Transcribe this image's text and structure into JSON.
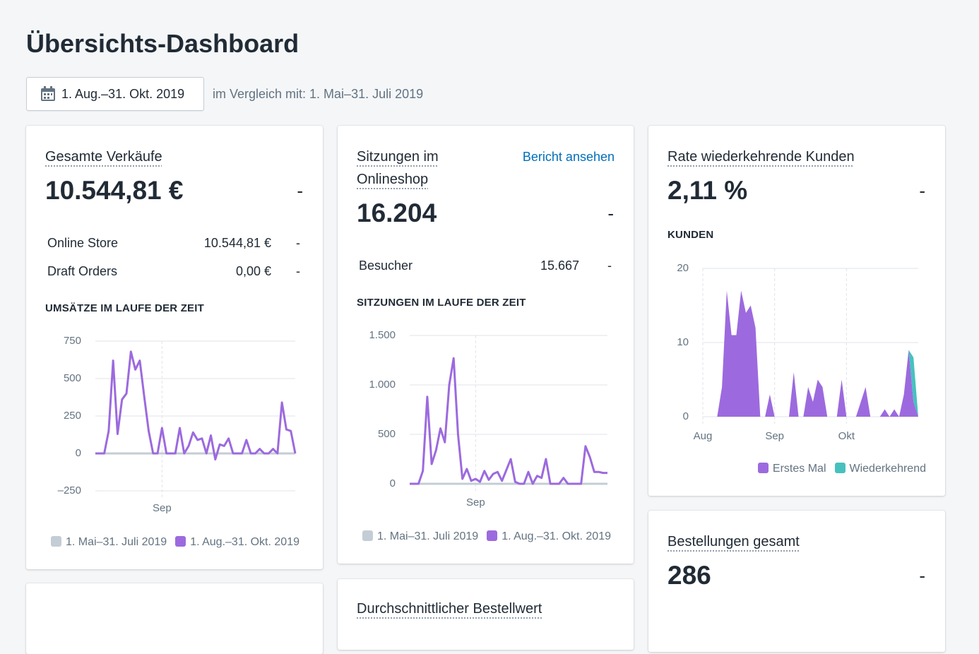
{
  "header": {
    "title": "Übersichts-Dashboard",
    "date_range": "1. Aug.–31. Okt. 2019",
    "comparison": "im Vergleich mit: 1. Mai–31. Juli 2019"
  },
  "cards": [
    {
      "title": "Gesamte Verkäufe",
      "value": "10.544,81 €",
      "change": "-",
      "rows": [
        {
          "label": "Online Store",
          "value": "10.544,81 €",
          "change": "-"
        },
        {
          "label": "Draft Orders",
          "value": "0,00 €",
          "change": "-"
        }
      ],
      "chart": {
        "type": "line",
        "title": "UMSÄTZE IM LAUFE DER ZEIT",
        "categories": [
          null,
          null,
          null,
          null,
          null,
          null,
          null,
          null,
          null,
          null,
          null,
          null,
          null,
          null,
          null,
          "Sep",
          null,
          null,
          null,
          null,
          null,
          null,
          null,
          null,
          null,
          null,
          null,
          null,
          null,
          null,
          null,
          null,
          null,
          null,
          null,
          null,
          null,
          null,
          null,
          null,
          null,
          null,
          null,
          null,
          null,
          null
        ],
        "ylim": [
          -250,
          750
        ],
        "yticks": [
          {
            "value": -250,
            "label": "–250"
          },
          0,
          250,
          500,
          750
        ],
        "grid": true,
        "series": [
          {
            "name": "1. Mai–31. Juli 2019",
            "color": "#c4cdd5",
            "values": [
              0,
              0,
              0,
              0,
              0,
              0,
              0,
              0,
              0,
              0,
              0,
              0,
              0,
              0,
              0,
              0,
              0,
              0,
              0,
              0,
              0,
              0,
              0,
              0,
              0,
              0,
              0,
              0,
              0,
              0,
              0,
              0,
              0,
              0,
              0,
              0,
              0,
              0,
              0,
              0,
              0,
              0,
              0,
              0,
              0,
              0
            ]
          },
          {
            "name": "1. Aug.–31. Okt. 2019",
            "color": "#9c6ade",
            "values": [
              0,
              0,
              0,
              150,
              620,
              130,
              360,
              400,
              680,
              560,
              620,
              380,
              150,
              0,
              0,
              170,
              0,
              0,
              0,
              170,
              0,
              50,
              140,
              90,
              100,
              0,
              120,
              -40,
              60,
              50,
              100,
              0,
              0,
              0,
              90,
              0,
              0,
              30,
              0,
              0,
              30,
              0,
              340,
              160,
              150,
              0
            ]
          }
        ]
      }
    },
    {
      "title": "Sitzungen im Onlineshop",
      "link": "Bericht ansehen",
      "value": "16.204",
      "change": "-",
      "rows": [
        {
          "label": "Besucher",
          "value": "15.667",
          "change": "-"
        }
      ],
      "chart": {
        "type": "line",
        "title": "SITZUNGEN IM LAUFE DER ZEIT",
        "categories": [
          null,
          null,
          null,
          null,
          null,
          null,
          null,
          null,
          null,
          null,
          null,
          null,
          null,
          null,
          null,
          "Sep",
          null,
          null,
          null,
          null,
          null,
          null,
          null,
          null,
          null,
          null,
          null,
          null,
          null,
          null,
          null,
          null,
          null,
          null,
          null,
          null,
          null,
          null,
          null,
          null,
          null,
          null,
          null,
          null,
          null,
          null
        ],
        "ylim": [
          0,
          1500
        ],
        "yticks": [
          0,
          500,
          {
            "value": 1000,
            "label": "1.000"
          },
          {
            "value": 1500,
            "label": "1.500"
          }
        ],
        "grid": true,
        "series": [
          {
            "name": "1. Mai–31. Juli 2019",
            "color": "#c4cdd5",
            "values": [
              0,
              0,
              0,
              0,
              0,
              0,
              0,
              0,
              0,
              0,
              0,
              0,
              0,
              0,
              0,
              0,
              0,
              0,
              0,
              0,
              0,
              0,
              0,
              0,
              0,
              0,
              0,
              0,
              0,
              0,
              0,
              0,
              0,
              0,
              0,
              0,
              0,
              0,
              0,
              0,
              0,
              0,
              0,
              0,
              0,
              0
            ]
          },
          {
            "name": "1. Aug.–31. Okt. 2019",
            "color": "#9c6ade",
            "values": [
              0,
              0,
              0,
              130,
              880,
              200,
              340,
              560,
              420,
              1000,
              1270,
              500,
              50,
              150,
              30,
              50,
              20,
              130,
              40,
              100,
              120,
              30,
              140,
              250,
              20,
              0,
              0,
              120,
              0,
              80,
              60,
              250,
              0,
              0,
              0,
              60,
              0,
              0,
              0,
              0,
              380,
              270,
              120,
              120,
              110,
              110
            ]
          }
        ]
      }
    },
    {
      "title": "Rate wiederkehrende Kunden",
      "value": "2,11 %",
      "change": "-",
      "chart": {
        "type": "area",
        "stacked": true,
        "title": "KUNDEN",
        "categories": [
          "Aug",
          null,
          null,
          null,
          null,
          null,
          null,
          null,
          null,
          null,
          null,
          null,
          null,
          null,
          null,
          "Sep",
          null,
          null,
          null,
          null,
          null,
          null,
          null,
          null,
          null,
          null,
          null,
          null,
          null,
          null,
          "Okt",
          null,
          null,
          null,
          null,
          null,
          null,
          null,
          null,
          null,
          null,
          null,
          null,
          null,
          null,
          null
        ],
        "ylim": [
          0,
          20
        ],
        "yticks": [
          0,
          10,
          20
        ],
        "grid": true,
        "series": [
          {
            "name": "Erstes Mal",
            "color": "#9c6ade",
            "values": [
              0,
              0,
              0,
              0,
              4,
              17,
              11,
              11,
              17,
              14,
              15,
              12,
              0,
              0,
              3,
              0,
              0,
              0,
              0,
              6,
              0,
              0,
              4,
              2,
              5,
              4,
              0,
              0,
              0,
              5,
              0,
              0,
              0,
              2,
              4,
              0,
              0,
              0,
              1,
              0,
              1,
              0,
              3,
              9,
              2,
              0
            ]
          },
          {
            "name": "Wiederkehrend",
            "color": "#47c1bf",
            "values": [
              0,
              0,
              0,
              0,
              0,
              0,
              0,
              0,
              0,
              0,
              0,
              0,
              0,
              0,
              0,
              0,
              0,
              0,
              0,
              0,
              0,
              0,
              0,
              0,
              0,
              0,
              0,
              0,
              0,
              0,
              0,
              0,
              0,
              0,
              0,
              0,
              0,
              0,
              0,
              0,
              0,
              0,
              0,
              0,
              6,
              0
            ]
          }
        ]
      }
    },
    {
      "title": "Bestellungen gesamt",
      "value": "286",
      "change": "-"
    },
    {
      "title": "Durchschnittlicher Bestellwert"
    }
  ]
}
